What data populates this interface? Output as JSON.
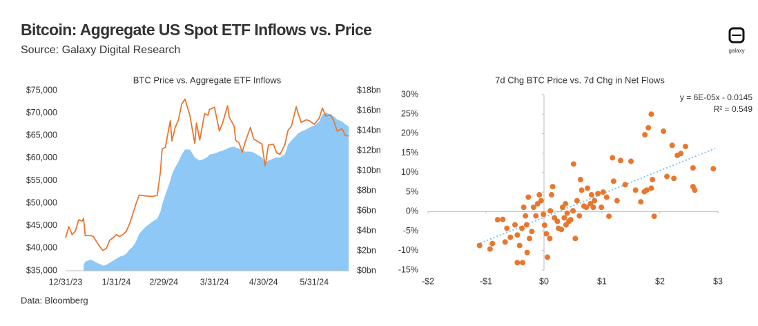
{
  "title": "Bitcoin: Aggregate US Spot ETF Inflows vs. Price",
  "subtitle": "Source: Galaxy Digital Research",
  "footer": "Data: Bloomberg",
  "logo": "galaxy",
  "chart_data": [
    {
      "type": "line",
      "title": "BTC Price vs. Aggregate ETF Inflows",
      "x": [
        "12/31/23",
        "1/2/24",
        "1/4/24",
        "1/6/24",
        "1/8/24",
        "1/10/24",
        "1/11/24",
        "1/12/24",
        "1/15/24",
        "1/17/24",
        "1/19/24",
        "1/22/24",
        "1/23/24",
        "1/25/24",
        "1/27/24",
        "1/29/24",
        "1/31/24",
        "2/2/24",
        "2/4/24",
        "2/6/24",
        "2/8/24",
        "2/10/24",
        "2/12/24",
        "2/14/24",
        "2/18/24",
        "2/22/24",
        "2/25/24",
        "2/27/24",
        "2/28/24",
        "3/1/24",
        "3/4/24",
        "3/5/24",
        "3/7/24",
        "3/9/24",
        "3/11/24",
        "3/13/24",
        "3/16/24",
        "3/19/24",
        "3/20/24",
        "3/22/24",
        "3/25/24",
        "3/27/24",
        "3/28/24",
        "3/31/24",
        "4/3/24",
        "4/5/24",
        "4/8/24",
        "4/9/24",
        "4/12/24",
        "4/13/24",
        "4/15/24",
        "4/17/24",
        "4/19/24",
        "4/22/24",
        "4/24/24",
        "4/26/24",
        "4/29/24",
        "4/30/24",
        "5/1/24",
        "5/3/24",
        "5/6/24",
        "5/8/24",
        "5/10/24",
        "5/13/24",
        "5/15/24",
        "5/17/24",
        "5/20/24",
        "5/21/24",
        "5/23/24",
        "5/26/24",
        "5/28/24",
        "5/31/24",
        "6/3/24",
        "6/5/24",
        "6/7/24",
        "6/10/24",
        "6/12/24",
        "6/14/24",
        "6/17/24",
        "6/19/24",
        "6/21/24"
      ],
      "xlim": [
        "12/31/23",
        "6/21/24"
      ],
      "xticks": [
        "12/31/23",
        "1/31/24",
        "2/29/24",
        "3/31/24",
        "4/30/24",
        "5/31/24"
      ],
      "ylim": [
        35000,
        75000
      ],
      "yticks": [
        {
          "value": 35000,
          "label": "$35,000"
        },
        {
          "value": 40000,
          "label": "$40,000"
        },
        {
          "value": 45000,
          "label": "$45,000"
        },
        {
          "value": 50000,
          "label": "$50,000"
        },
        {
          "value": 55000,
          "label": "$55,000"
        },
        {
          "value": 60000,
          "label": "$60,000"
        },
        {
          "value": 65000,
          "label": "$65,000"
        },
        {
          "value": 70000,
          "label": "$70,000"
        },
        {
          "value": 75000,
          "label": "$75,000"
        }
      ],
      "y2lim": [
        0,
        18
      ],
      "y2ticks": [
        {
          "value": 0,
          "label": "$0bn"
        },
        {
          "value": 2,
          "label": "$2bn"
        },
        {
          "value": 4,
          "label": "$4bn"
        },
        {
          "value": 6,
          "label": "$6bn"
        },
        {
          "value": 8,
          "label": "$8bn"
        },
        {
          "value": 10,
          "label": "$10bn"
        },
        {
          "value": 12,
          "label": "$12bn"
        },
        {
          "value": 14,
          "label": "$14bn"
        },
        {
          "value": 16,
          "label": "$16bn"
        },
        {
          "value": 18,
          "label": "$18bn"
        }
      ],
      "series": [
        {
          "type": "area",
          "axis": "y2",
          "color": "#8ec8f6",
          "values": [
            null,
            null,
            null,
            null,
            null,
            null,
            0.6,
            0.9,
            1.1,
            1.0,
            0.8,
            0.6,
            0.5,
            0.6,
            0.8,
            1.0,
            1.2,
            1.4,
            1.5,
            1.7,
            2.1,
            2.4,
            2.9,
            3.7,
            4.4,
            4.9,
            5.2,
            5.9,
            6.6,
            7.6,
            9.0,
            9.6,
            10.3,
            10.9,
            11.6,
            12.1,
            12.1,
            11.3,
            11.2,
            11.0,
            11.2,
            11.4,
            11.6,
            11.7,
            11.9,
            12.0,
            12.2,
            12.3,
            12.4,
            12.3,
            12.2,
            12.0,
            11.9,
            11.9,
            11.8,
            11.6,
            11.3,
            11.1,
            10.8,
            11.0,
            11.2,
            11.3,
            11.3,
            11.6,
            12.6,
            13.0,
            13.5,
            13.7,
            13.9,
            14.1,
            14.3,
            14.5,
            14.9,
            15.6,
            15.8,
            15.6,
            15.4,
            15.1,
            14.9,
            14.6,
            14.4
          ]
        },
        {
          "type": "line",
          "axis": "y",
          "color": "#e8772e",
          "values": [
            42300,
            44800,
            43000,
            43800,
            46300,
            46000,
            46600,
            42800,
            42800,
            42600,
            41400,
            39800,
            39500,
            40000,
            41800,
            42300,
            43000,
            42600,
            43000,
            43700,
            45300,
            47500,
            49800,
            51800,
            51600,
            51500,
            51700,
            57000,
            62000,
            62400,
            68300,
            63800,
            66800,
            68500,
            72000,
            73100,
            69400,
            63200,
            67800,
            64000,
            69900,
            69500,
            70800,
            71300,
            66000,
            67800,
            71600,
            69100,
            67100,
            63900,
            63400,
            61300,
            63800,
            66800,
            64200,
            63800,
            63100,
            60600,
            58300,
            62900,
            63100,
            61200,
            60800,
            62900,
            66200,
            67000,
            71400,
            70100,
            67900,
            68500,
            68300,
            67500,
            68800,
            71100,
            69300,
            69600,
            68200,
            66000,
            66500,
            65000,
            64900
          ]
        }
      ]
    },
    {
      "type": "scatter",
      "title": "7d Chg BTC Price vs. 7d Chg in Net Flows",
      "color": "#e8772e",
      "x": [
        -1.11,
        -0.89,
        -0.93,
        -0.71,
        -0.64,
        -0.67,
        -0.58,
        -0.5,
        -0.46,
        -0.42,
        -0.38,
        -0.35,
        -0.32,
        -0.3,
        -0.27,
        -0.21,
        -0.18,
        -0.14,
        -0.11,
        -0.08,
        -0.05,
        -0.01,
        0.01,
        0.04,
        0.1,
        0.11,
        0.13,
        0.15,
        0.18,
        0.23,
        0.25,
        0.3,
        0.32,
        0.35,
        0.37,
        0.38,
        0.4,
        0.43,
        0.46,
        0.5,
        0.51,
        0.54,
        0.57,
        0.61,
        0.63,
        0.65,
        0.69,
        0.73,
        0.75,
        0.8,
        0.82,
        0.85,
        0.87,
        0.93,
        0.99,
        1.02,
        1.08,
        1.12,
        1.18,
        1.2,
        1.26,
        1.32,
        1.4,
        1.5,
        1.58,
        1.67,
        1.73,
        1.77,
        1.74,
        1.8,
        1.85,
        1.85,
        1.87,
        1.9,
        2.06,
        2.12,
        2.21,
        2.24,
        2.3,
        2.36,
        2.44,
        2.57,
        2.57,
        2.6,
        2.92,
        -0.46,
        -0.37,
        0.06,
        -0.29,
        -0.25,
        -0.8
      ],
      "values": [
        -8.7,
        -8.2,
        -9.6,
        -2.0,
        -4.3,
        -7.8,
        -6.6,
        -3.4,
        -6.0,
        -8.7,
        -4.3,
        1.1,
        -1.1,
        -3.4,
        3.7,
        -5.1,
        1.1,
        -1.1,
        2.0,
        4.3,
        2.8,
        -0.7,
        -3.5,
        -5.7,
        -6.9,
        0.2,
        4.3,
        6.4,
        -1.6,
        -2.5,
        -4.3,
        -4.6,
        1.1,
        -1.6,
        2.0,
        -3.4,
        -0.4,
        -2.5,
        -2.1,
        0.2,
        12.2,
        -6.9,
        2.8,
        -1.1,
        8.2,
        5.5,
        1.4,
        1.1,
        6.0,
        2.0,
        4.3,
        1.1,
        2.8,
        4.6,
        1.1,
        5.0,
        3.7,
        -1.2,
        13.8,
        7.8,
        2.8,
        13.1,
        6.9,
        12.9,
        5.5,
        2.5,
        5.1,
        5.5,
        19.7,
        21.5,
        25.0,
        6.0,
        8.2,
        -1.2,
        20.6,
        9.0,
        17.0,
        8.5,
        14.4,
        14.9,
        16.7,
        11.2,
        6.4,
        5.5,
        11.0,
        -13.1,
        -13.1,
        -11.7,
        -10.5,
        -6.9,
        -2.1
      ],
      "xlim": [
        -2,
        3
      ],
      "xticks": [
        {
          "value": -2,
          "label": "-$2"
        },
        {
          "value": -1,
          "label": "-$1"
        },
        {
          "value": 0,
          "label": "$0"
        },
        {
          "value": 1,
          "label": "$1"
        },
        {
          "value": 2,
          "label": "$2"
        },
        {
          "value": 3,
          "label": "$3"
        }
      ],
      "ylim": [
        -15,
        30
      ],
      "yticks": [
        {
          "value": -15,
          "label": "-15%"
        },
        {
          "value": -10,
          "label": "-10%"
        },
        {
          "value": -5,
          "label": "-5%"
        },
        {
          "value": 0,
          "label": "0%"
        },
        {
          "value": 5,
          "label": "5%"
        },
        {
          "value": 10,
          "label": "10%"
        },
        {
          "value": 15,
          "label": "15%"
        },
        {
          "value": 20,
          "label": "20%"
        },
        {
          "value": 25,
          "label": "25%"
        },
        {
          "value": 30,
          "label": "30%"
        }
      ],
      "trendline": {
        "x": [
          -1.15,
          2.95
        ],
        "values": [
          -8.4,
          16.2
        ],
        "color": "#7fc0ef"
      },
      "annotations": [
        "y = 6E-05x - 0.0145",
        "R² = 0.549"
      ]
    }
  ]
}
